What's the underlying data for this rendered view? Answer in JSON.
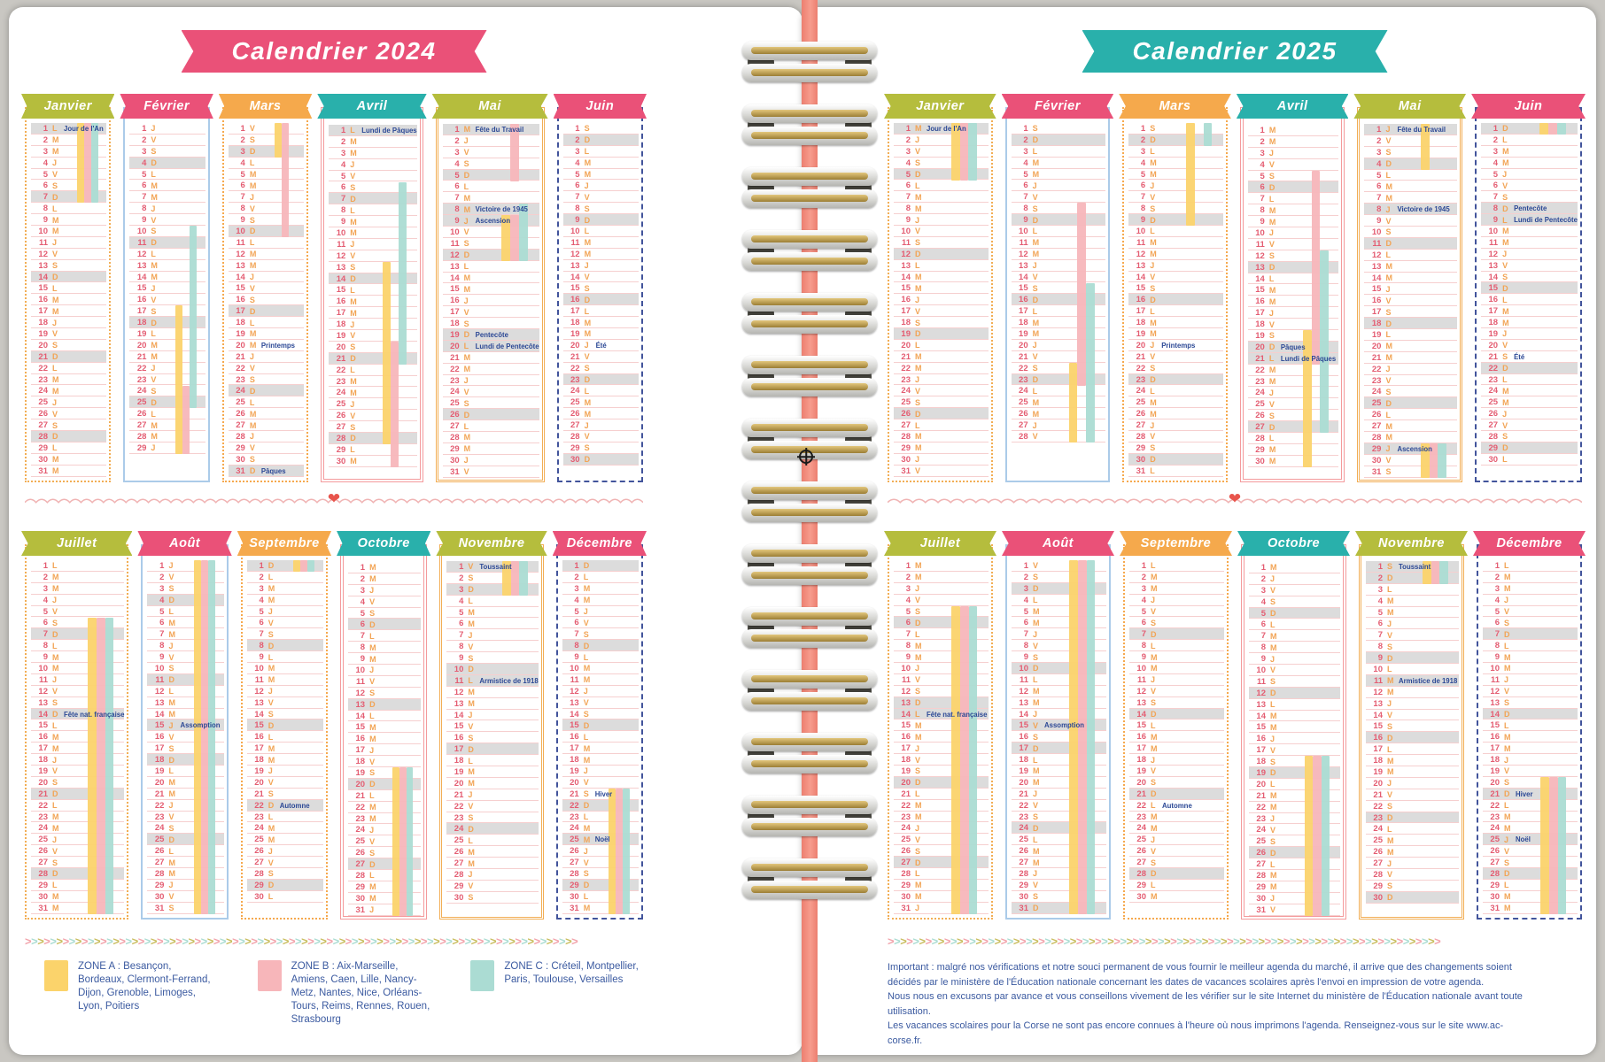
{
  "day_letters": [
    "L",
    "M",
    "M",
    "J",
    "V",
    "S",
    "D"
  ],
  "zones": {
    "A": {
      "color": "#fbd36b"
    },
    "B": {
      "color": "#f7b6ba"
    },
    "C": {
      "color": "#abdcd3"
    }
  },
  "palette": {
    "banner_colors": [
      "#b5bd3d",
      "#ea5178",
      "#f5a94c",
      "#29b0ab",
      "#b5bd3d",
      "#ea5178"
    ],
    "number_color": "#e45d72",
    "letter_color": "#f2a455",
    "holiday_color": "#2b4895",
    "sunday_band": "#dcdcdc",
    "row_line": "#f6cfcf",
    "chevron_colors": [
      "#f2a3ab",
      "#aadcd2",
      "#c9bd5e"
    ],
    "wave_color": "#f0b4b4",
    "heart": "❤",
    "spiral_color": "#ec7f70"
  },
  "pages": [
    {
      "year": "2024",
      "title": "Calendrier 2024",
      "title_color": "#ea5178",
      "months": [
        {
          "name": "Janvier",
          "start": 0,
          "days": 31,
          "holidays": [
            {
              "day": 1,
              "label": "Jour de l'An",
              "ferie": true
            }
          ],
          "bars": [
            {
              "zone": "A",
              "from": 1,
              "to": 7
            },
            {
              "zone": "B",
              "from": 1,
              "to": 7
            },
            {
              "zone": "C",
              "from": 1,
              "to": 7
            }
          ]
        },
        {
          "name": "Février",
          "start": 3,
          "days": 29,
          "holidays": [],
          "bars": [
            {
              "zone": "C",
              "from": 10,
              "to": 25
            },
            {
              "zone": "A",
              "from": 17,
              "to": 29
            },
            {
              "zone": "B",
              "from": 24,
              "to": 29
            }
          ]
        },
        {
          "name": "Mars",
          "start": 4,
          "days": 31,
          "holidays": [
            {
              "day": 20,
              "label": "Printemps",
              "ferie": false
            },
            {
              "day": 31,
              "label": "Pâques",
              "ferie": true
            }
          ],
          "bars": [
            {
              "zone": "A",
              "from": 1,
              "to": 3
            },
            {
              "zone": "B",
              "from": 1,
              "to": 10
            }
          ]
        },
        {
          "name": "Avril",
          "start": 0,
          "days": 30,
          "holidays": [
            {
              "day": 1,
              "label": "Lundi de Pâques",
              "ferie": true
            }
          ],
          "bars": [
            {
              "zone": "C",
              "from": 6,
              "to": 21
            },
            {
              "zone": "A",
              "from": 13,
              "to": 28
            },
            {
              "zone": "B",
              "from": 20,
              "to": 30
            }
          ]
        },
        {
          "name": "Mai",
          "start": 2,
          "days": 31,
          "holidays": [
            {
              "day": 1,
              "label": "Fête du Travail",
              "ferie": true
            },
            {
              "day": 8,
              "label": "Victoire de 1945",
              "ferie": true
            },
            {
              "day": 9,
              "label": "Ascension",
              "ferie": true
            },
            {
              "day": 19,
              "label": "Pentecôte",
              "ferie": true
            },
            {
              "day": 20,
              "label": "Lundi de Pentecôte",
              "ferie": true
            }
          ],
          "bars": [
            {
              "zone": "B",
              "from": 1,
              "to": 5
            },
            {
              "zone": "C",
              "from": 8,
              "to": 12
            },
            {
              "zone": "A",
              "from": 9,
              "to": 12
            },
            {
              "zone": "B",
              "from": 9,
              "to": 12
            }
          ]
        },
        {
          "name": "Juin",
          "start": 5,
          "days": 30,
          "holidays": [
            {
              "day": 20,
              "label": "Été",
              "ferie": false
            }
          ],
          "bars": []
        },
        {
          "name": "Juillet",
          "start": 0,
          "days": 31,
          "holidays": [
            {
              "day": 14,
              "label": "Fête nat. française",
              "ferie": true
            }
          ],
          "bars": [
            {
              "zone": "A",
              "from": 6,
              "to": 31
            },
            {
              "zone": "B",
              "from": 6,
              "to": 31
            },
            {
              "zone": "C",
              "from": 6,
              "to": 31
            }
          ]
        },
        {
          "name": "Août",
          "start": 3,
          "days": 31,
          "holidays": [
            {
              "day": 15,
              "label": "Assomption",
              "ferie": true
            }
          ],
          "bars": [
            {
              "zone": "A",
              "from": 1,
              "to": 31
            },
            {
              "zone": "B",
              "from": 1,
              "to": 31
            },
            {
              "zone": "C",
              "from": 1,
              "to": 31
            }
          ]
        },
        {
          "name": "Septembre",
          "start": 6,
          "days": 30,
          "holidays": [
            {
              "day": 22,
              "label": "Automne",
              "ferie": false
            }
          ],
          "bars": [
            {
              "zone": "A",
              "from": 1,
              "to": 1
            },
            {
              "zone": "B",
              "from": 1,
              "to": 1
            },
            {
              "zone": "C",
              "from": 1,
              "to": 1
            }
          ]
        },
        {
          "name": "Octobre",
          "start": 1,
          "days": 31,
          "holidays": [],
          "bars": [
            {
              "zone": "A",
              "from": 19,
              "to": 31
            },
            {
              "zone": "B",
              "from": 19,
              "to": 31
            },
            {
              "zone": "C",
              "from": 19,
              "to": 31
            }
          ]
        },
        {
          "name": "Novembre",
          "start": 4,
          "days": 30,
          "holidays": [
            {
              "day": 1,
              "label": "Toussaint",
              "ferie": true
            },
            {
              "day": 11,
              "label": "Armistice de 1918",
              "ferie": true
            }
          ],
          "bars": [
            {
              "zone": "A",
              "from": 1,
              "to": 3
            },
            {
              "zone": "B",
              "from": 1,
              "to": 3
            },
            {
              "zone": "C",
              "from": 1,
              "to": 3
            }
          ]
        },
        {
          "name": "Décembre",
          "start": 6,
          "days": 31,
          "holidays": [
            {
              "day": 21,
              "label": "Hiver",
              "ferie": false
            },
            {
              "day": 25,
              "label": "Noël",
              "ferie": true
            }
          ],
          "bars": [
            {
              "zone": "A",
              "from": 21,
              "to": 31
            },
            {
              "zone": "B",
              "from": 21,
              "to": 31
            },
            {
              "zone": "C",
              "from": 21,
              "to": 31
            }
          ]
        }
      ],
      "footer_legend": [
        {
          "zone": "A",
          "text": "ZONE A : Besançon, Bordeaux, Clermont-Ferrand, Dijon, Grenoble, Limoges, Lyon, Poitiers"
        },
        {
          "zone": "B",
          "text": "ZONE B : Aix-Marseille, Amiens, Caen, Lille, Nancy-Metz, Nantes, Nice, Orléans-Tours, Reims, Rennes, Rouen, Strasbourg"
        },
        {
          "zone": "C",
          "text": "ZONE C : Créteil, Montpellier, Paris, Toulouse, Versailles"
        }
      ]
    },
    {
      "year": "2025",
      "title": "Calendrier 2025",
      "title_color": "#29b0ab",
      "months": [
        {
          "name": "Janvier",
          "start": 2,
          "days": 31,
          "holidays": [
            {
              "day": 1,
              "label": "Jour de l'An",
              "ferie": true
            }
          ],
          "bars": [
            {
              "zone": "A",
              "from": 1,
              "to": 5
            },
            {
              "zone": "B",
              "from": 1,
              "to": 5
            },
            {
              "zone": "C",
              "from": 1,
              "to": 5
            }
          ]
        },
        {
          "name": "Février",
          "start": 5,
          "days": 28,
          "holidays": [],
          "bars": [
            {
              "zone": "B",
              "from": 8,
              "to": 23
            },
            {
              "zone": "C",
              "from": 15,
              "to": 28
            },
            {
              "zone": "A",
              "from": 22,
              "to": 28
            }
          ]
        },
        {
          "name": "Mars",
          "start": 5,
          "days": 31,
          "holidays": [
            {
              "day": 20,
              "label": "Printemps",
              "ferie": false
            }
          ],
          "bars": [
            {
              "zone": "A",
              "from": 1,
              "to": 9
            },
            {
              "zone": "C",
              "from": 1,
              "to": 2
            }
          ]
        },
        {
          "name": "Avril",
          "start": 1,
          "days": 30,
          "holidays": [
            {
              "day": 20,
              "label": "Pâques",
              "ferie": true
            },
            {
              "day": 21,
              "label": "Lundi de Pâques",
              "ferie": true
            }
          ],
          "bars": [
            {
              "zone": "B",
              "from": 5,
              "to": 21
            },
            {
              "zone": "C",
              "from": 12,
              "to": 27
            },
            {
              "zone": "A",
              "from": 19,
              "to": 30
            }
          ]
        },
        {
          "name": "Mai",
          "start": 3,
          "days": 31,
          "holidays": [
            {
              "day": 1,
              "label": "Fête du Travail",
              "ferie": true
            },
            {
              "day": 8,
              "label": "Victoire de 1945",
              "ferie": true
            },
            {
              "day": 29,
              "label": "Ascension",
              "ferie": true
            }
          ],
          "bars": [
            {
              "zone": "A",
              "from": 1,
              "to": 4
            },
            {
              "zone": "A",
              "from": 29,
              "to": 31
            },
            {
              "zone": "B",
              "from": 29,
              "to": 31
            },
            {
              "zone": "C",
              "from": 29,
              "to": 31
            }
          ]
        },
        {
          "name": "Juin",
          "start": 6,
          "days": 30,
          "holidays": [
            {
              "day": 8,
              "label": "Pentecôte",
              "ferie": true
            },
            {
              "day": 9,
              "label": "Lundi de Pentecôte",
              "ferie": true
            },
            {
              "day": 21,
              "label": "Été",
              "ferie": false
            }
          ],
          "bars": [
            {
              "zone": "A",
              "from": 1,
              "to": 1
            },
            {
              "zone": "B",
              "from": 1,
              "to": 1
            },
            {
              "zone": "C",
              "from": 1,
              "to": 1
            }
          ]
        },
        {
          "name": "Juillet",
          "start": 1,
          "days": 31,
          "holidays": [
            {
              "day": 14,
              "label": "Fête nat. française",
              "ferie": true
            }
          ],
          "bars": [
            {
              "zone": "A",
              "from": 5,
              "to": 31
            },
            {
              "zone": "B",
              "from": 5,
              "to": 31
            },
            {
              "zone": "C",
              "from": 5,
              "to": 31
            }
          ]
        },
        {
          "name": "Août",
          "start": 4,
          "days": 31,
          "holidays": [
            {
              "day": 15,
              "label": "Assomption",
              "ferie": true
            }
          ],
          "bars": [
            {
              "zone": "A",
              "from": 1,
              "to": 31
            },
            {
              "zone": "B",
              "from": 1,
              "to": 31
            },
            {
              "zone": "C",
              "from": 1,
              "to": 31
            }
          ]
        },
        {
          "name": "Septembre",
          "start": 0,
          "days": 30,
          "holidays": [
            {
              "day": 22,
              "label": "Automne",
              "ferie": false
            }
          ],
          "bars": []
        },
        {
          "name": "Octobre",
          "start": 2,
          "days": 31,
          "holidays": [],
          "bars": [
            {
              "zone": "A",
              "from": 18,
              "to": 31
            },
            {
              "zone": "B",
              "from": 18,
              "to": 31
            },
            {
              "zone": "C",
              "from": 18,
              "to": 31
            }
          ]
        },
        {
          "name": "Novembre",
          "start": 5,
          "days": 30,
          "holidays": [
            {
              "day": 1,
              "label": "Toussaint",
              "ferie": true
            },
            {
              "day": 11,
              "label": "Armistice de 1918",
              "ferie": true
            }
          ],
          "bars": [
            {
              "zone": "A",
              "from": 1,
              "to": 2
            },
            {
              "zone": "B",
              "from": 1,
              "to": 2
            },
            {
              "zone": "C",
              "from": 1,
              "to": 2
            }
          ]
        },
        {
          "name": "Décembre",
          "start": 0,
          "days": 31,
          "holidays": [
            {
              "day": 21,
              "label": "Hiver",
              "ferie": false
            },
            {
              "day": 25,
              "label": "Noël",
              "ferie": true
            }
          ],
          "bars": [
            {
              "zone": "A",
              "from": 20,
              "to": 31
            },
            {
              "zone": "B",
              "from": 20,
              "to": 31
            },
            {
              "zone": "C",
              "from": 20,
              "to": 31
            }
          ]
        }
      ],
      "footer_notice": "Important : malgré nos vérifications et notre souci permanent de vous fournir le meilleur agenda du marché, il arrive que des changements soient décidés par le ministère de l'Éducation nationale concernant les dates de vacances scolaires après l'envoi en impression de votre agenda.\nNous nous en excusons par avance et vous conseillons vivement de les vérifier sur le site Internet du ministère de l'Éducation nationale avant toute utilisation.\nLes vacances scolaires pour la Corse ne sont pas encore connues à l'heure où nous imprimons l'agenda. Renseignez-vous sur le site www.ac-corse.fr."
    }
  ]
}
